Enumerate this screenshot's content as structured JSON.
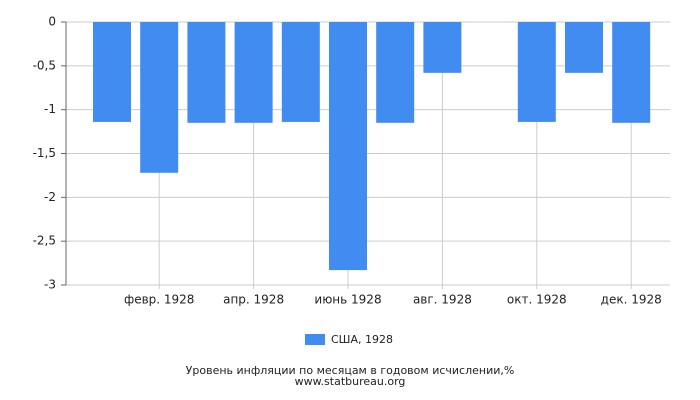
{
  "chart_data": {
    "type": "bar",
    "title": "Уровень инфляции по месяцам в годовом исчислении,%",
    "subtitle": "www.statbureau.org",
    "categories": [
      null,
      "февр. 1928",
      null,
      "апр. 1928",
      null,
      "июнь 1928",
      null,
      "авг. 1928",
      null,
      "окт. 1928",
      null,
      "дек. 1928"
    ],
    "series": [
      {
        "name": "США, 1928",
        "color": "#418cf0",
        "values": [
          -1.14,
          -1.72,
          -1.15,
          -1.15,
          -1.14,
          -2.83,
          -1.15,
          -0.58,
          null,
          -1.14,
          -0.58,
          -1.15
        ]
      }
    ],
    "ylim": [
      -3,
      0
    ],
    "yticks": [
      0,
      {
        "value": -0.5,
        "label": "-0,5"
      },
      -1,
      {
        "value": -1.5,
        "label": "-1,5"
      },
      -2,
      {
        "value": -2.5,
        "label": "-2,5"
      },
      -3
    ],
    "grid": true,
    "legend": "bottom"
  }
}
